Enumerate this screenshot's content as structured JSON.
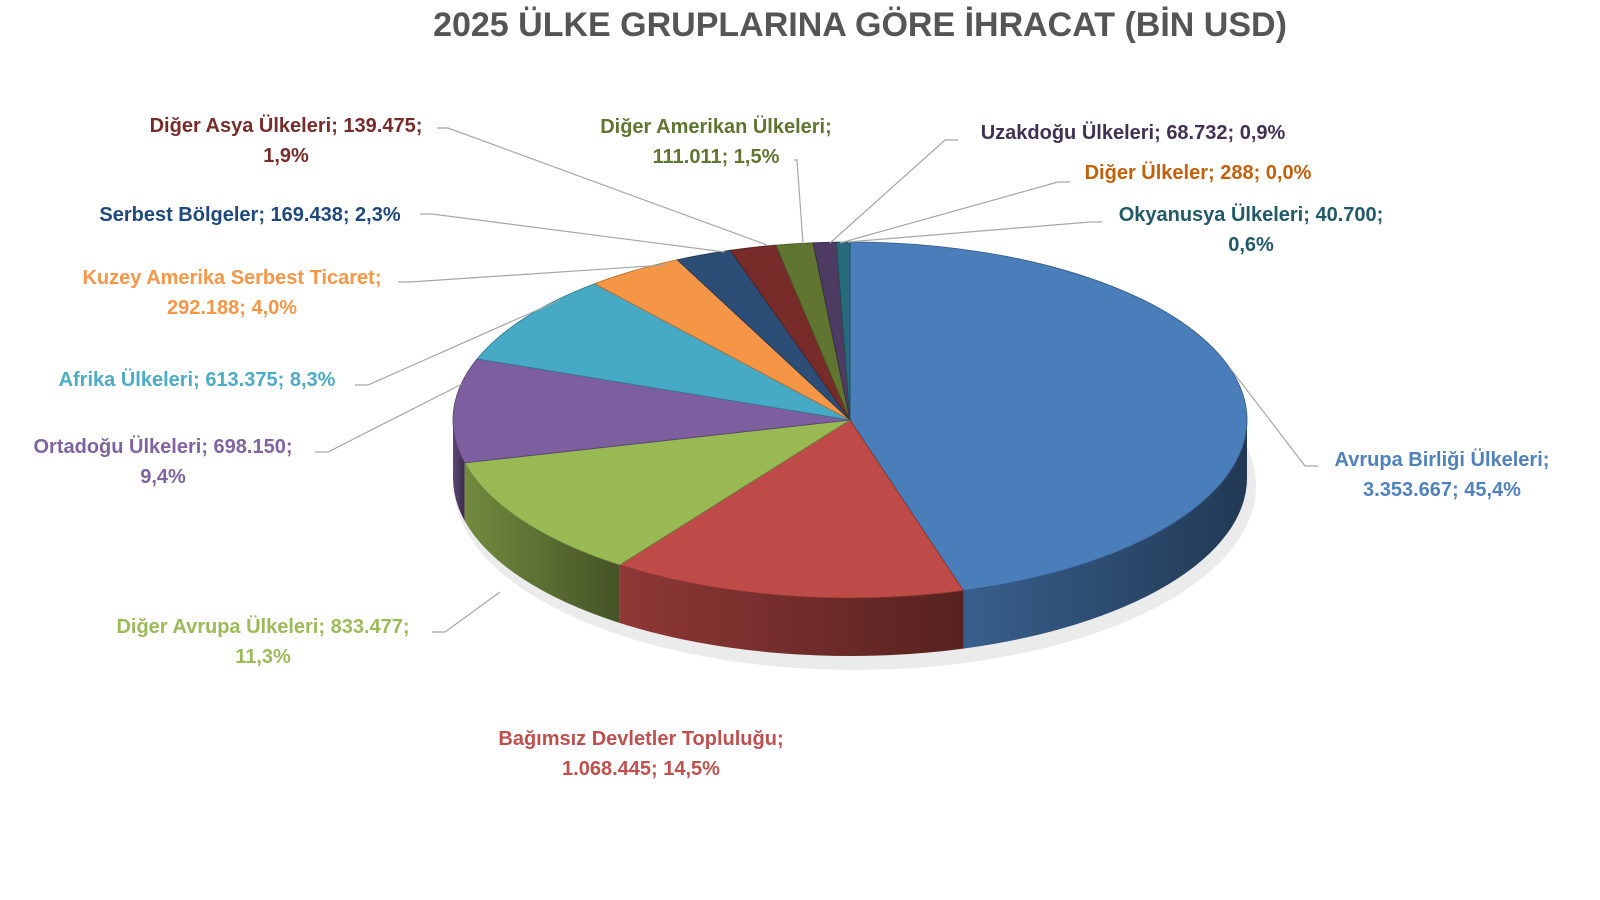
{
  "chart_data": {
    "type": "pie",
    "style": "3d",
    "title": "2025 ÜLKE GRUPLARINA GÖRE İHRACAT (BİN USD)",
    "legend": "none",
    "slices": [
      {
        "name": "Avrupa Birliği Ülkeleri",
        "value": 3353667,
        "value_label": "3.353.667",
        "percent_label": "45,4%",
        "color": "#4a7ebb",
        "label_color": "#4f81bd"
      },
      {
        "name": "Bağımsız Devletler Topluluğu",
        "value": 1068445,
        "value_label": "1.068.445",
        "percent_label": "14,5%",
        "color": "#be4b48",
        "label_color": "#c0504d"
      },
      {
        "name": "Diğer Avrupa Ülkeleri",
        "value": 833477,
        "value_label": "833.477",
        "percent_label": "11,3%",
        "color": "#98b954",
        "label_color": "#9bbb59"
      },
      {
        "name": "Ortadoğu Ülkeleri",
        "value": 698150,
        "value_label": "698.150",
        "percent_label": "9,4%",
        "color": "#7d5fa0",
        "label_color": "#8064a2"
      },
      {
        "name": "Afrika Ülkeleri",
        "value": 613375,
        "value_label": "613.375",
        "percent_label": "8,3%",
        "color": "#46aac5",
        "label_color": "#4bacc6"
      },
      {
        "name": "Kuzey Amerika Serbest Ticaret",
        "value": 292188,
        "value_label": "292.188",
        "percent_label": "4,0%",
        "color": "#f59647",
        "label_color": "#f79646"
      },
      {
        "name": "Serbest Bölgeler",
        "value": 169438,
        "value_label": "169.438",
        "percent_label": "2,3%",
        "color": "#2c4d75",
        "label_color": "#1f497d"
      },
      {
        "name": "Diğer Asya Ülkeleri",
        "value": 139475,
        "value_label": "139.475",
        "percent_label": "1,9%",
        "color": "#772c2a",
        "label_color": "#772c2a"
      },
      {
        "name": "Diğer Amerikan Ülkeleri",
        "value": 111011,
        "value_label": "111.011",
        "percent_label": "1,5%",
        "color": "#5f7530",
        "label_color": "#5f7530"
      },
      {
        "name": "Uzakdoğu Ülkeleri",
        "value": 68732,
        "value_label": "68.732",
        "percent_label": "0,9%",
        "color": "#4d3b62",
        "label_color": "#403152"
      },
      {
        "name": "Diğer Ülkeler",
        "value": 288,
        "value_label": "288",
        "percent_label": "0,0%",
        "color": "#b65708",
        "label_color": "#c45f0a"
      },
      {
        "name": "Okyanusya Ülkeleri",
        "value": 40700,
        "value_label": "40.700",
        "percent_label": "0,6%",
        "color": "#276a7c",
        "label_color": "#215968"
      }
    ]
  }
}
